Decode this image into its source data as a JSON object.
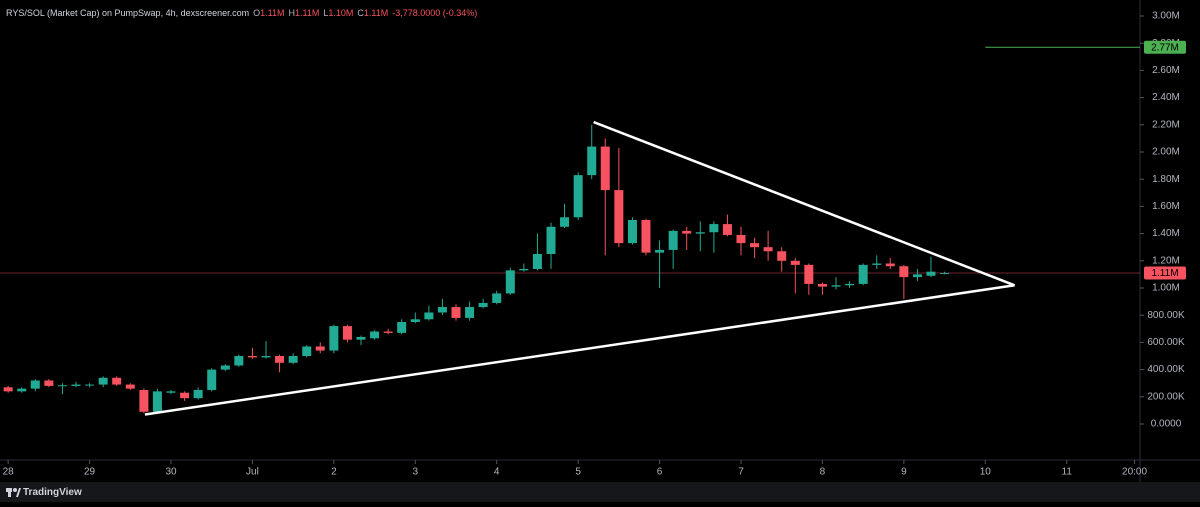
{
  "chart_data": {
    "type": "candlestick",
    "title": "RYS/SOL (Market Cap) on PumpSwap, 4h, dexscreener.com",
    "ohlc": [
      {
        "label": "O",
        "value": "1.11M"
      },
      {
        "label": "H",
        "value": "1.11M"
      },
      {
        "label": "L",
        "value": "1.10M"
      },
      {
        "label": "C",
        "value": "1.11M"
      }
    ],
    "change": "-3,778.0000 (-0.34%)",
    "footer": "TradingView",
    "up_color": "#22ab94",
    "down_color": "#f7525f",
    "x": [
      0,
      0.167,
      0.333,
      0.5,
      0.667,
      0.833,
      1,
      1.167,
      1.333,
      1.5,
      1.667,
      1.833,
      2,
      2.167,
      2.333,
      2.5,
      2.667,
      2.833,
      3,
      3.167,
      3.333,
      3.5,
      3.667,
      3.833,
      4,
      4.167,
      4.333,
      4.5,
      4.667,
      4.833,
      5,
      5.167,
      5.333,
      5.5,
      5.667,
      5.833,
      6,
      6.167,
      6.333,
      6.5,
      6.667,
      6.833,
      7,
      7.167,
      7.333,
      7.5,
      7.667,
      7.833,
      8,
      8.167,
      8.333,
      8.5,
      8.667,
      8.833,
      9,
      9.167,
      9.333,
      9.5,
      9.667,
      9.833,
      10,
      10.167,
      10.333,
      10.5,
      10.667,
      10.833,
      11,
      11.167,
      11.333,
      11.5
    ],
    "open": [
      270000,
      240000,
      260000,
      320000,
      280000,
      280000,
      285000,
      290000,
      340000,
      290000,
      250000,
      90000,
      230000,
      230000,
      190000,
      250000,
      400000,
      430000,
      500000,
      490000,
      500000,
      450000,
      500000,
      570000,
      540000,
      720000,
      620000,
      630000,
      680000,
      670000,
      750000,
      770000,
      820000,
      860000,
      780000,
      860000,
      890000,
      960000,
      1130000,
      1140000,
      1250000,
      1450000,
      1520000,
      1830000,
      2040000,
      1720000,
      1330000,
      1500000,
      1260000,
      1280000,
      1420000,
      1400000,
      1410000,
      1470000,
      1390000,
      1330000,
      1300000,
      1270000,
      1200000,
      1170000,
      1030000,
      1010000,
      1020000,
      1030000,
      1170000,
      1180000,
      1160000,
      1080000,
      1090000,
      1110000
    ],
    "high": [
      280000,
      270000,
      330000,
      330000,
      300000,
      310000,
      300000,
      350000,
      350000,
      300000,
      260000,
      260000,
      250000,
      240000,
      270000,
      410000,
      440000,
      510000,
      560000,
      610000,
      510000,
      520000,
      580000,
      600000,
      730000,
      730000,
      650000,
      690000,
      700000,
      770000,
      820000,
      870000,
      920000,
      880000,
      900000,
      920000,
      980000,
      1150000,
      1180000,
      1400000,
      1480000,
      1620000,
      1850000,
      2200000,
      2100000,
      2030000,
      1520000,
      1510000,
      1350000,
      1430000,
      1450000,
      1490000,
      1490000,
      1540000,
      1450000,
      1370000,
      1420000,
      1300000,
      1220000,
      1180000,
      1040000,
      1080000,
      1050000,
      1180000,
      1240000,
      1220000,
      1170000,
      1140000,
      1230000,
      1120000
    ],
    "low": [
      230000,
      230000,
      240000,
      270000,
      220000,
      270000,
      270000,
      270000,
      280000,
      250000,
      80000,
      80000,
      220000,
      170000,
      180000,
      240000,
      390000,
      420000,
      480000,
      480000,
      380000,
      440000,
      490000,
      520000,
      520000,
      600000,
      580000,
      620000,
      660000,
      660000,
      740000,
      760000,
      800000,
      760000,
      760000,
      850000,
      880000,
      950000,
      1120000,
      1130000,
      1140000,
      1440000,
      1500000,
      1800000,
      1240000,
      1300000,
      1320000,
      1240000,
      1000000,
      1140000,
      1280000,
      1270000,
      1260000,
      1380000,
      1240000,
      1220000,
      1200000,
      1120000,
      960000,
      950000,
      950000,
      990000,
      1000000,
      1020000,
      1140000,
      1140000,
      920000,
      1050000,
      1080000,
      1100000
    ],
    "close": [
      240000,
      260000,
      320000,
      280000,
      285000,
      290000,
      290000,
      340000,
      290000,
      260000,
      90000,
      240000,
      240000,
      190000,
      250000,
      400000,
      430000,
      500000,
      490000,
      500000,
      450000,
      500000,
      570000,
      540000,
      720000,
      620000,
      640000,
      680000,
      670000,
      750000,
      770000,
      820000,
      860000,
      780000,
      860000,
      890000,
      960000,
      1130000,
      1140000,
      1250000,
      1450000,
      1520000,
      1830000,
      2040000,
      1720000,
      1330000,
      1500000,
      1260000,
      1280000,
      1420000,
      1400000,
      1410000,
      1470000,
      1390000,
      1330000,
      1300000,
      1270000,
      1200000,
      1170000,
      1030000,
      1010000,
      1020000,
      1030000,
      1170000,
      1180000,
      1160000,
      1080000,
      1100000,
      1120000,
      1110000
    ],
    "xlim": [
      -0.1,
      13.9
    ],
    "xticks": [
      {
        "value": 0,
        "label": "28"
      },
      {
        "value": 1,
        "label": "29"
      },
      {
        "value": 2,
        "label": "30"
      },
      {
        "value": 3,
        "label": "Jul"
      },
      {
        "value": 4,
        "label": "2"
      },
      {
        "value": 5,
        "label": "3"
      },
      {
        "value": 6,
        "label": "4"
      },
      {
        "value": 7,
        "label": "5"
      },
      {
        "value": 8,
        "label": "6"
      },
      {
        "value": 9,
        "label": "7"
      },
      {
        "value": 10,
        "label": "8"
      },
      {
        "value": 11,
        "label": "9"
      },
      {
        "value": 12,
        "label": "10"
      },
      {
        "value": 13,
        "label": "11"
      },
      {
        "value": 13.833,
        "label": "20:00"
      }
    ],
    "ylim": [
      -264700,
      3117600
    ],
    "yticks": [
      {
        "value": 0,
        "label": "0.0000"
      },
      {
        "value": 200000,
        "label": "200.00K"
      },
      {
        "value": 400000,
        "label": "400.00K"
      },
      {
        "value": 600000,
        "label": "600.00K"
      },
      {
        "value": 800000,
        "label": "800.00K"
      },
      {
        "value": 1000000,
        "label": "1.00M"
      },
      {
        "value": 1200000,
        "label": "1.20M"
      },
      {
        "value": 1400000,
        "label": "1.40M"
      },
      {
        "value": 1600000,
        "label": "1.60M"
      },
      {
        "value": 1800000,
        "label": "1.80M"
      },
      {
        "value": 2000000,
        "label": "2.00M"
      },
      {
        "value": 2200000,
        "label": "2.20M"
      },
      {
        "value": 2400000,
        "label": "2.40M"
      },
      {
        "value": 2600000,
        "label": "2.60M"
      },
      {
        "value": 2800000,
        "label": "2.80M"
      },
      {
        "value": 3000000,
        "label": "3.00M"
      }
    ],
    "trendlines": [
      {
        "x": [
          7.19,
          12.36
        ],
        "y": [
          2220000,
          1020000
        ]
      },
      {
        "x": [
          1.68,
          12.36
        ],
        "y": [
          70000,
          1020000
        ]
      }
    ],
    "price_lines": [
      {
        "value": 2770000,
        "label": "2.77M",
        "color": "#4caf50",
        "from_x": 12
      },
      {
        "value": 1110000,
        "label": "1.11M",
        "color": "#f7525f",
        "from_x": -0.1
      }
    ]
  }
}
